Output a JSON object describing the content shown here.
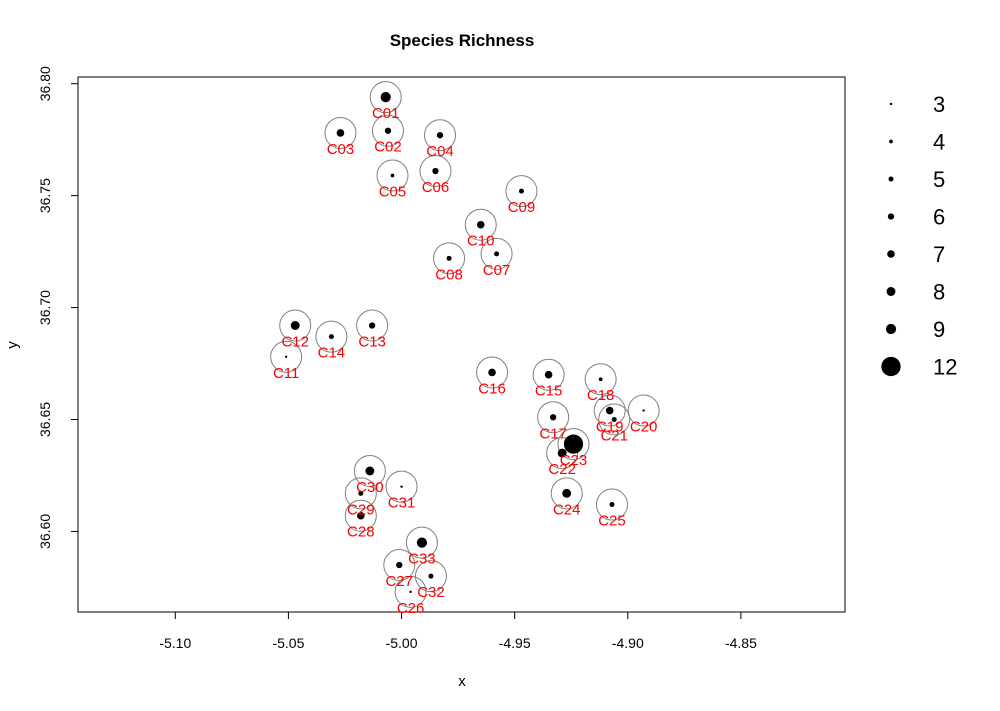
{
  "chart_data": {
    "type": "scatter",
    "title": "Species Richness",
    "xlabel": "x",
    "ylabel": "y",
    "xlim": [
      -5.143,
      -4.804
    ],
    "ylim": [
      36.564,
      36.803
    ],
    "x_ticks": [
      -5.1,
      -5.05,
      -5.0,
      -4.95,
      -4.9,
      -4.85
    ],
    "x_tick_labels": [
      "-5.10",
      "-5.05",
      "-5.00",
      "-4.95",
      "-4.90",
      "-4.85"
    ],
    "y_ticks": [
      36.6,
      36.65,
      36.7,
      36.75,
      36.8
    ],
    "y_tick_labels": [
      "36.60",
      "36.65",
      "36.70",
      "36.75",
      "36.80"
    ],
    "grid": false,
    "legend": {
      "placement": "right",
      "entries": [
        {
          "label": "3",
          "value": 3
        },
        {
          "label": "4",
          "value": 4
        },
        {
          "label": "5",
          "value": 5
        },
        {
          "label": "6",
          "value": 6
        },
        {
          "label": "7",
          "value": 7
        },
        {
          "label": "8",
          "value": 8
        },
        {
          "label": "9",
          "value": 9
        },
        {
          "label": "12",
          "value": 12
        }
      ]
    },
    "colors": {
      "points": "#000000",
      "labels": "#ff0000",
      "rings": "#808080"
    },
    "points": [
      {
        "label": "C01",
        "x": -5.007,
        "y": 36.794,
        "richness": 9
      },
      {
        "label": "C02",
        "x": -5.006,
        "y": 36.779,
        "richness": 6
      },
      {
        "label": "C03",
        "x": -5.027,
        "y": 36.778,
        "richness": 7
      },
      {
        "label": "C04",
        "x": -4.983,
        "y": 36.777,
        "richness": 6
      },
      {
        "label": "C05",
        "x": -5.004,
        "y": 36.759,
        "richness": 4
      },
      {
        "label": "C06",
        "x": -4.985,
        "y": 36.761,
        "richness": 6
      },
      {
        "label": "C07",
        "x": -4.958,
        "y": 36.724,
        "richness": 5
      },
      {
        "label": "C08",
        "x": -4.979,
        "y": 36.722,
        "richness": 5
      },
      {
        "label": "C09",
        "x": -4.947,
        "y": 36.752,
        "richness": 5
      },
      {
        "label": "C10",
        "x": -4.965,
        "y": 36.737,
        "richness": 7
      },
      {
        "label": "C11",
        "x": -5.051,
        "y": 36.678,
        "richness": 3
      },
      {
        "label": "C12",
        "x": -5.047,
        "y": 36.692,
        "richness": 8
      },
      {
        "label": "C13",
        "x": -5.013,
        "y": 36.692,
        "richness": 6
      },
      {
        "label": "C14",
        "x": -5.031,
        "y": 36.687,
        "richness": 5
      },
      {
        "label": "C15",
        "x": -4.935,
        "y": 36.67,
        "richness": 7
      },
      {
        "label": "C16",
        "x": -4.96,
        "y": 36.671,
        "richness": 7
      },
      {
        "label": "C17",
        "x": -4.933,
        "y": 36.651,
        "richness": 6
      },
      {
        "label": "C18",
        "x": -4.912,
        "y": 36.668,
        "richness": 4
      },
      {
        "label": "C19",
        "x": -4.908,
        "y": 36.654,
        "richness": 7
      },
      {
        "label": "C20",
        "x": -4.893,
        "y": 36.654,
        "richness": 3
      },
      {
        "label": "C21",
        "x": -4.906,
        "y": 36.65,
        "richness": 5
      },
      {
        "label": "C22",
        "x": -4.929,
        "y": 36.635,
        "richness": 8
      },
      {
        "label": "C23",
        "x": -4.924,
        "y": 36.639,
        "richness": 12
      },
      {
        "label": "C24",
        "x": -4.927,
        "y": 36.617,
        "richness": 8
      },
      {
        "label": "C25",
        "x": -4.907,
        "y": 36.612,
        "richness": 5
      },
      {
        "label": "C26",
        "x": -4.996,
        "y": 36.573,
        "richness": 3
      },
      {
        "label": "C27",
        "x": -5.001,
        "y": 36.585,
        "richness": 6
      },
      {
        "label": "C28",
        "x": -5.018,
        "y": 36.607,
        "richness": 7
      },
      {
        "label": "C29",
        "x": -5.018,
        "y": 36.617,
        "richness": 5
      },
      {
        "label": "C30",
        "x": -5.014,
        "y": 36.627,
        "richness": 8
      },
      {
        "label": "C31",
        "x": -5.0,
        "y": 36.62,
        "richness": 3
      },
      {
        "label": "C32",
        "x": -4.987,
        "y": 36.58,
        "richness": 5
      },
      {
        "label": "C33",
        "x": -4.991,
        "y": 36.595,
        "richness": 9
      }
    ]
  }
}
